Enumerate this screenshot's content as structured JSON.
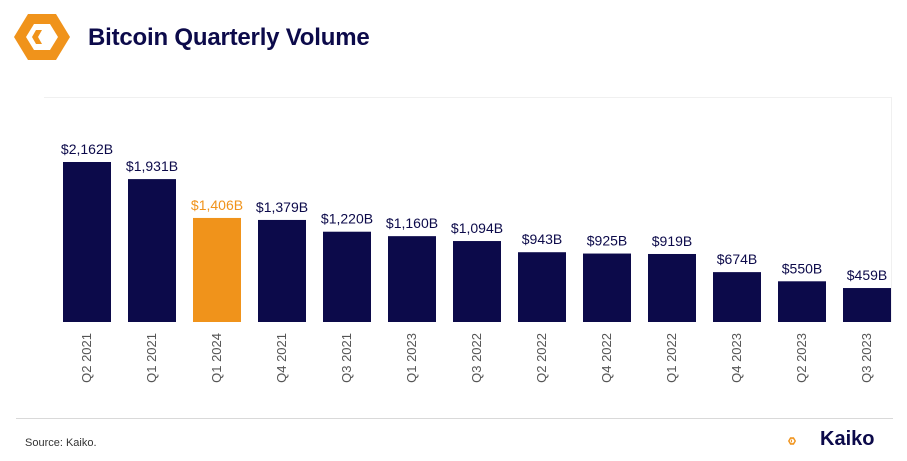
{
  "header": {
    "title": "Bitcoin Quarterly Volume",
    "logo_icon": "kaiko-logo-icon"
  },
  "footer": {
    "source": "Source: Kaiko.",
    "brand_name": "Kaiko",
    "brand_icon": "kaiko-logo-icon"
  },
  "colors": {
    "bar": "#0c0a4a",
    "highlight": "#f0931b",
    "accent": "#f0931b"
  },
  "chart_data": {
    "type": "bar",
    "title": "Bitcoin Quarterly Volume",
    "unit": "USD billions",
    "categories": [
      "Q2 2021",
      "Q1 2021",
      "Q1 2024",
      "Q4 2021",
      "Q3 2021",
      "Q1 2023",
      "Q3 2022",
      "Q2 2022",
      "Q4 2022",
      "Q1 2022",
      "Q4 2023",
      "Q2 2023",
      "Q3 2023"
    ],
    "values": [
      2162,
      1931,
      1406,
      1379,
      1220,
      1160,
      1094,
      943,
      925,
      919,
      674,
      550,
      459
    ],
    "data_labels": [
      "$2,162B",
      "$1,931B",
      "$1,406B",
      "$1,379B",
      "$1,220B",
      "$1,160B",
      "$1,094B",
      "$943B",
      "$925B",
      "$919B",
      "$674B",
      "$550B",
      "$459B"
    ],
    "highlighted_category": "Q1 2024",
    "ylim": [
      0,
      2162
    ],
    "grid": false,
    "legend": "none"
  }
}
